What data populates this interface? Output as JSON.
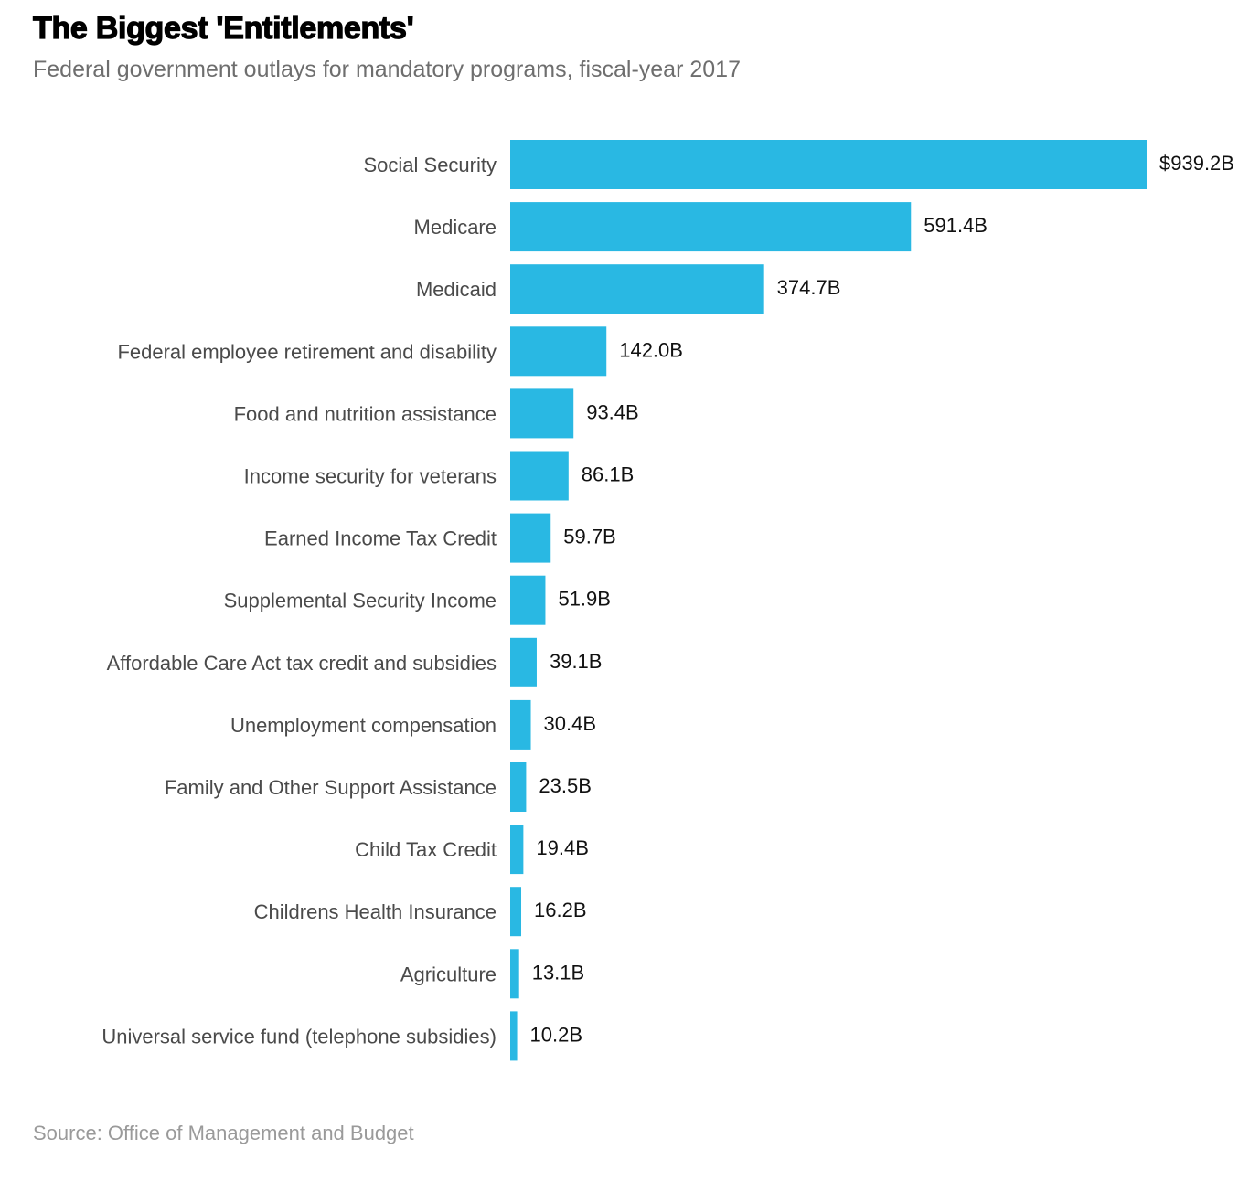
{
  "chart_data": {
    "type": "bar",
    "orientation": "horizontal",
    "title": "The Biggest 'Entitlements'",
    "subtitle": "Federal government outlays for mandatory programs, fiscal-year 2017",
    "source": "Source: Office of Management and Budget",
    "xlabel": "",
    "ylabel": "",
    "unit": "billions of dollars",
    "xlim": [
      0,
      939.2
    ],
    "grid": false,
    "bar_color": "#29b8e3",
    "categories": [
      "Social Security",
      "Medicare",
      "Medicaid",
      "Federal employee retirement and disability",
      "Food and nutrition assistance",
      "Income security for veterans",
      "Earned Income Tax Credit",
      "Supplemental Security Income",
      "Affordable Care Act tax credit and subsidies",
      "Unemployment compensation",
      "Family and Other Support Assistance",
      "Child Tax Credit",
      "Childrens Health Insurance",
      "Agriculture",
      "Universal service fund (telephone subsidies)"
    ],
    "values": [
      939.2,
      591.4,
      374.7,
      142.0,
      93.4,
      86.1,
      59.7,
      51.9,
      39.1,
      30.4,
      23.5,
      19.4,
      16.2,
      13.1,
      10.2
    ],
    "value_labels": [
      "$939.2B",
      "591.4B",
      "374.7B",
      "142.0B",
      "93.4B",
      "86.1B",
      "59.7B",
      "51.9B",
      "39.1B",
      "30.4B",
      "23.5B",
      "19.4B",
      "16.2B",
      "13.1B",
      "10.2B"
    ]
  }
}
